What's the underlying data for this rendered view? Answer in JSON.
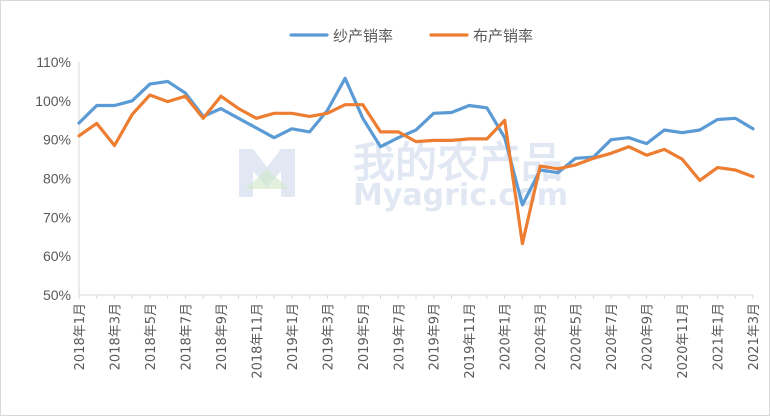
{
  "watermark": {
    "cn": "我的农产品",
    "en": "Myagric.com"
  },
  "chart_data": {
    "type": "line",
    "title": "",
    "xlabel": "",
    "ylabel": "",
    "ylim": [
      0.5,
      1.1
    ],
    "yticks": [
      "50%",
      "60%",
      "70%",
      "80%",
      "90%",
      "100%",
      "110%"
    ],
    "grid": false,
    "legend": "top-center",
    "x": [
      "2018年1月",
      "2018年2月",
      "2018年3月",
      "2018年4月",
      "2018年5月",
      "2018年6月",
      "2018年7月",
      "2018年8月",
      "2018年9月",
      "2018年10月",
      "2018年11月",
      "2018年12月",
      "2019年1月",
      "2019年2月",
      "2019年3月",
      "2019年4月",
      "2019年5月",
      "2019年6月",
      "2019年7月",
      "2019年8月",
      "2019年9月",
      "2019年10月",
      "2019年11月",
      "2019年12月",
      "2020年1月",
      "2020年2月",
      "2020年3月",
      "2020年4月",
      "2020年5月",
      "2020年6月",
      "2020年7月",
      "2020年8月",
      "2020年9月",
      "2020年10月",
      "2020年11月",
      "2020年12月",
      "2021年1月",
      "2021年2月",
      "2021年3月"
    ],
    "xtick_labels": [
      "2018年1月",
      "2018年3月",
      "2018年5月",
      "2018年7月",
      "2018年9月",
      "2018年11月",
      "2019年1月",
      "2019年3月",
      "2019年5月",
      "2019年7月",
      "2019年9月",
      "2019年11月",
      "2020年1月",
      "2020年3月",
      "2020年5月",
      "2020年7月",
      "2020年9月",
      "2020年11月",
      "2021年1月",
      "2021年3月"
    ],
    "series": [
      {
        "name": "纱产销率",
        "color": "#5b9bd5",
        "values": [
          0.943,
          0.988,
          0.988,
          1.0,
          1.043,
          1.05,
          1.02,
          0.96,
          0.98,
          0.955,
          0.93,
          0.905,
          0.928,
          0.92,
          0.975,
          1.058,
          0.955,
          0.882,
          0.905,
          0.925,
          0.968,
          0.97,
          0.988,
          0.982,
          0.905,
          0.732,
          0.822,
          0.815,
          0.852,
          0.855,
          0.9,
          0.905,
          0.89,
          0.925,
          0.918,
          0.925,
          0.952,
          0.955,
          0.928
        ]
      },
      {
        "name": "布产销率",
        "color": "#ed7d31",
        "values": [
          0.91,
          0.942,
          0.885,
          0.965,
          1.015,
          0.998,
          1.012,
          0.955,
          1.012,
          0.98,
          0.955,
          0.968,
          0.968,
          0.96,
          0.968,
          0.99,
          0.99,
          0.92,
          0.92,
          0.895,
          0.898,
          0.898,
          0.902,
          0.902,
          0.95,
          0.632,
          0.832,
          0.825,
          0.835,
          0.852,
          0.865,
          0.882,
          0.86,
          0.875,
          0.85,
          0.795,
          0.828,
          0.822,
          0.805
        ]
      }
    ]
  }
}
